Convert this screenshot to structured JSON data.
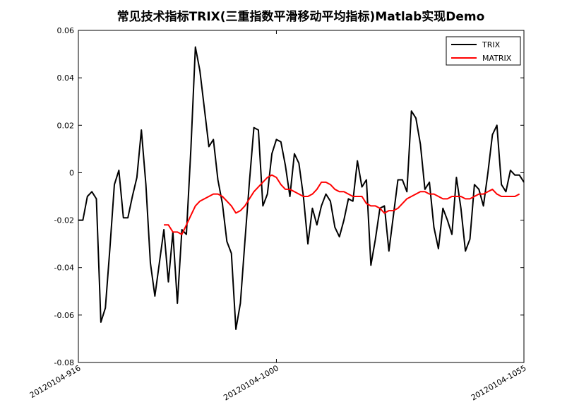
{
  "chart_data": {
    "type": "line",
    "title": "常见技术指标TRIX(三重指数平滑移动平均指标)Matlab实现Demo",
    "xlabel": "",
    "ylabel": "",
    "ylim": [
      -0.08,
      0.06
    ],
    "yticks": [
      "-0.08",
      "-0.06",
      "-0.04",
      "-0.02",
      "0",
      "0.02",
      "0.04",
      "0.06"
    ],
    "ytick_values": [
      -0.08,
      -0.06,
      -0.04,
      -0.02,
      0,
      0.02,
      0.04,
      0.06
    ],
    "xticks": [
      {
        "label": "20120104-916",
        "index": 0
      },
      {
        "label": "20120104-1000",
        "index": 44
      },
      {
        "label": "20120104-1055",
        "index": 99
      }
    ],
    "legend_position": "top-right",
    "grid": false,
    "series": [
      {
        "name": "TRIX",
        "color": "#000000",
        "start_index": 0,
        "values": [
          -0.02,
          -0.02,
          -0.01,
          -0.008,
          -0.011,
          -0.063,
          -0.057,
          -0.032,
          -0.005,
          0.001,
          -0.019,
          -0.019,
          -0.01,
          -0.002,
          0.018,
          -0.005,
          -0.038,
          -0.052,
          -0.038,
          -0.024,
          -0.046,
          -0.025,
          -0.055,
          -0.024,
          -0.026,
          0.01,
          0.053,
          0.043,
          0.027,
          0.011,
          0.014,
          -0.003,
          -0.013,
          -0.029,
          -0.034,
          -0.066,
          -0.055,
          -0.029,
          -0.004,
          0.019,
          0.018,
          -0.014,
          -0.009,
          0.008,
          0.014,
          0.013,
          0.003,
          -0.01,
          0.008,
          0.004,
          -0.01,
          -0.03,
          -0.015,
          -0.022,
          -0.014,
          -0.009,
          -0.012,
          -0.023,
          -0.027,
          -0.02,
          -0.011,
          -0.012,
          0.005,
          -0.006,
          -0.003,
          -0.039,
          -0.028,
          -0.015,
          -0.014,
          -0.033,
          -0.018,
          -0.003,
          -0.003,
          -0.008,
          0.026,
          0.023,
          0.012,
          -0.007,
          -0.004,
          -0.023,
          -0.032,
          -0.015,
          -0.02,
          -0.026,
          -0.002,
          -0.015,
          -0.033,
          -0.028,
          -0.005,
          -0.007,
          -0.014,
          0.0,
          0.016,
          0.02,
          -0.005,
          -0.008,
          0.001,
          -0.001,
          -0.001,
          -0.004
        ]
      },
      {
        "name": "MATRIX",
        "color": "#ff0000",
        "start_index": 19,
        "values": [
          -0.022,
          -0.022,
          -0.025,
          -0.025,
          -0.026,
          -0.022,
          -0.018,
          -0.014,
          -0.012,
          -0.011,
          -0.01,
          -0.009,
          -0.009,
          -0.01,
          -0.012,
          -0.014,
          -0.017,
          -0.016,
          -0.014,
          -0.011,
          -0.008,
          -0.006,
          -0.004,
          -0.002,
          -0.001,
          -0.002,
          -0.005,
          -0.007,
          -0.007,
          -0.008,
          -0.009,
          -0.01,
          -0.01,
          -0.009,
          -0.007,
          -0.004,
          -0.004,
          -0.005,
          -0.007,
          -0.008,
          -0.008,
          -0.009,
          -0.01,
          -0.01,
          -0.01,
          -0.013,
          -0.014,
          -0.014,
          -0.015,
          -0.017,
          -0.016,
          -0.016,
          -0.015,
          -0.013,
          -0.011,
          -0.01,
          -0.009,
          -0.008,
          -0.008,
          -0.009,
          -0.009,
          -0.01,
          -0.011,
          -0.011,
          -0.01,
          -0.01,
          -0.01,
          -0.011,
          -0.011,
          -0.01,
          -0.009,
          -0.009,
          -0.008,
          -0.007,
          -0.009,
          -0.01,
          -0.01,
          -0.01,
          -0.01,
          -0.009
        ]
      }
    ],
    "x_count": 100
  }
}
